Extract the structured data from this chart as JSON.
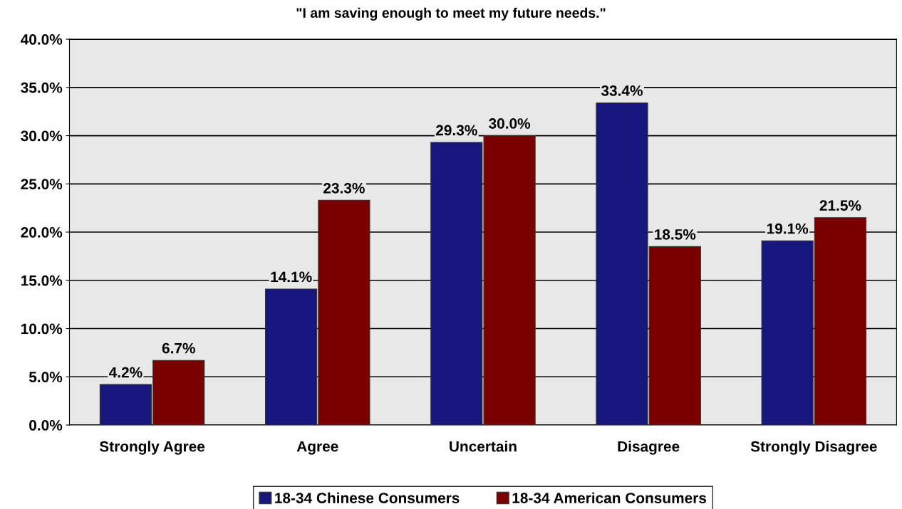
{
  "chart_data": {
    "type": "bar",
    "title": "\"I am saving enough to meet my future needs.\"",
    "categories": [
      "Strongly Agree",
      "Agree",
      "Uncertain",
      "Disagree",
      "Strongly Disagree"
    ],
    "series": [
      {
        "name": "18-34 Chinese Consumers",
        "color": "#16167e",
        "values": [
          4.2,
          14.1,
          29.3,
          33.4,
          19.1
        ],
        "value_labels": [
          "4.2%",
          "14.1%",
          "29.3%",
          "33.4%",
          "19.1%"
        ]
      },
      {
        "name": "18-34 American Consumers",
        "color": "#7a0000",
        "values": [
          6.7,
          23.3,
          30.0,
          18.5,
          21.5
        ],
        "value_labels": [
          "6.7%",
          "23.3%",
          "30.0%",
          "18.5%",
          "21.5%"
        ]
      }
    ],
    "ylim": [
      0,
      40
    ],
    "yticks": [
      {
        "value": 0,
        "label": "0.0%"
      },
      {
        "value": 5,
        "label": "5.0%"
      },
      {
        "value": 10,
        "label": "10.0%"
      },
      {
        "value": 15,
        "label": "15.0%"
      },
      {
        "value": 20,
        "label": "20.0%"
      },
      {
        "value": 25,
        "label": "25.0%"
      },
      {
        "value": 30,
        "label": "30.0%"
      },
      {
        "value": 35,
        "label": "35.0%"
      },
      {
        "value": 40,
        "label": "40.0%"
      }
    ],
    "grid": "y",
    "legend": "bottom"
  }
}
